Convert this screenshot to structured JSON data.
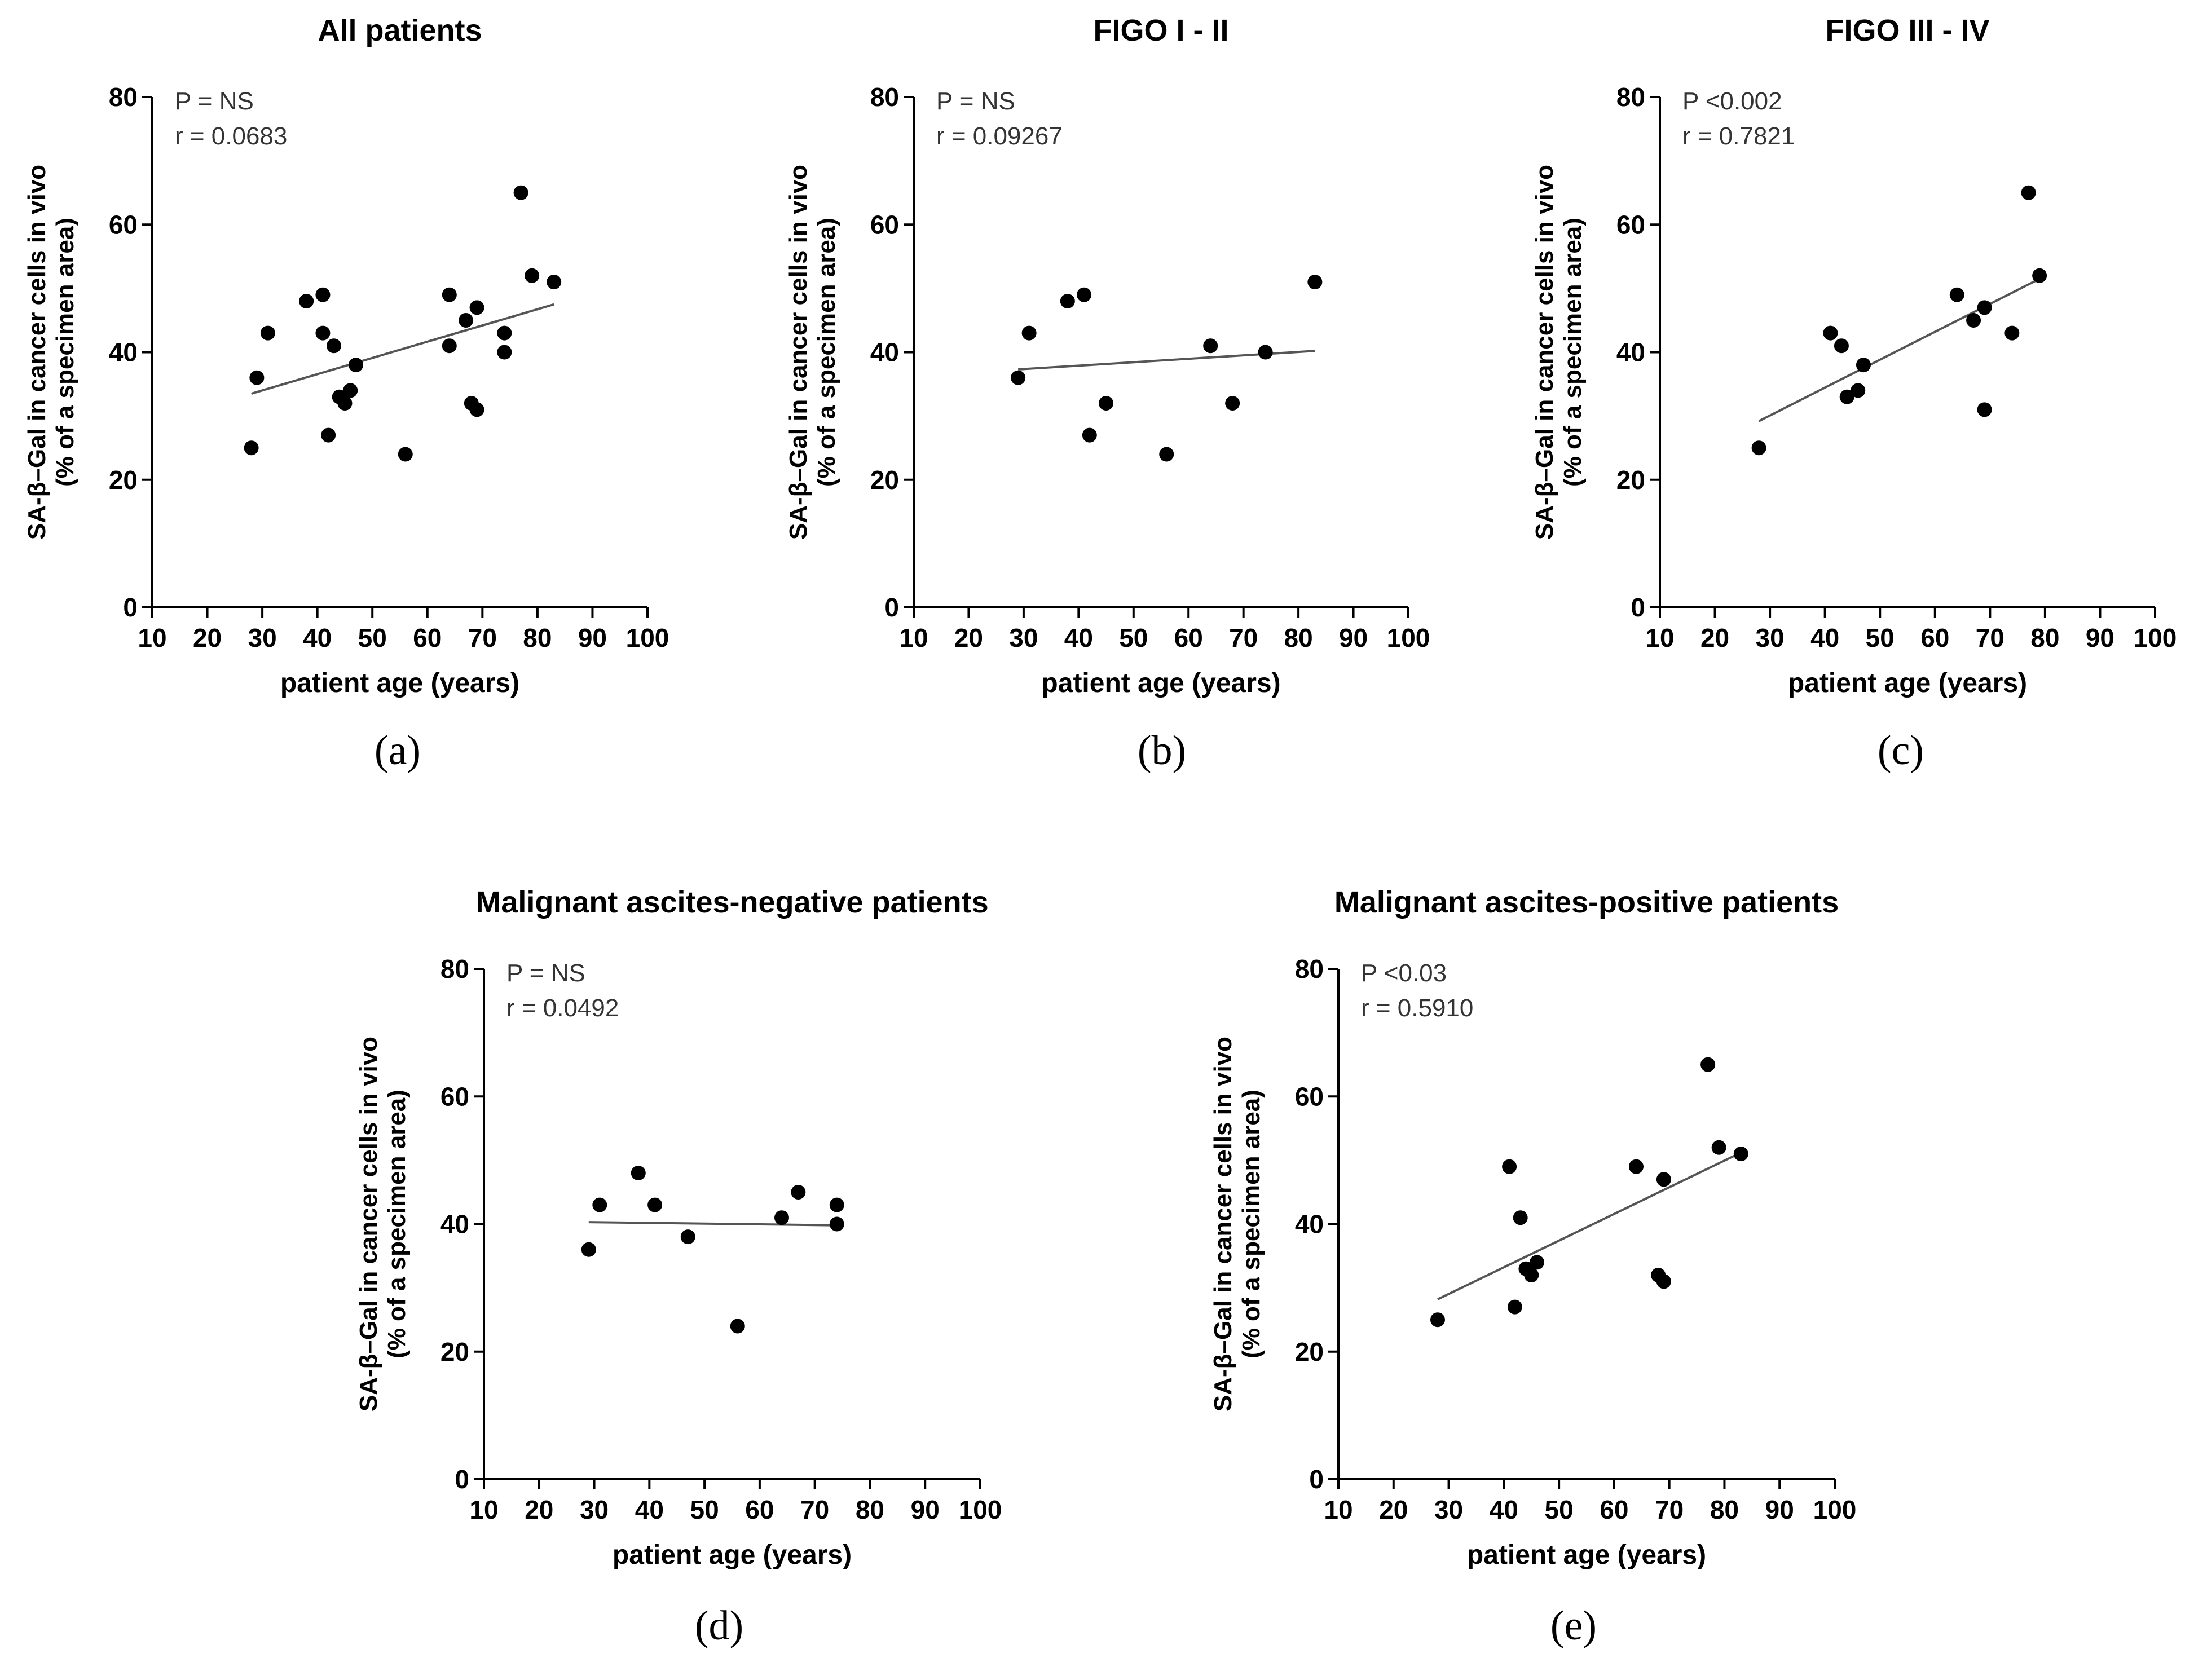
{
  "figure": {
    "panel_labels": [
      "(a)",
      "(b)",
      "(c)",
      "(d)",
      "(e)"
    ]
  },
  "chart_data": [
    {
      "type": "scatter",
      "title": "All patients",
      "xlabel": "patient age (years)",
      "ylabel_line1": "SA-β–Gal in cancer cells in vivo",
      "ylabel_line2": "(% of a specimen area)",
      "xlim": [
        10,
        100
      ],
      "ylim": [
        0,
        80
      ],
      "xticks": [
        10,
        20,
        30,
        40,
        50,
        60,
        70,
        80,
        90,
        100
      ],
      "yticks": [
        0,
        20,
        40,
        60,
        80
      ],
      "stat_p": "P = NS",
      "stat_r": "r = 0.0683",
      "points": [
        {
          "x": 28,
          "y": 25
        },
        {
          "x": 29,
          "y": 36
        },
        {
          "x": 31,
          "y": 43
        },
        {
          "x": 38,
          "y": 48
        },
        {
          "x": 41,
          "y": 49
        },
        {
          "x": 41,
          "y": 43
        },
        {
          "x": 42,
          "y": 27
        },
        {
          "x": 43,
          "y": 41
        },
        {
          "x": 44,
          "y": 33
        },
        {
          "x": 45,
          "y": 32
        },
        {
          "x": 46,
          "y": 34
        },
        {
          "x": 47,
          "y": 38
        },
        {
          "x": 56,
          "y": 24
        },
        {
          "x": 64,
          "y": 49
        },
        {
          "x": 64,
          "y": 41
        },
        {
          "x": 67,
          "y": 45
        },
        {
          "x": 68,
          "y": 32
        },
        {
          "x": 69,
          "y": 31
        },
        {
          "x": 69,
          "y": 47
        },
        {
          "x": 74,
          "y": 43
        },
        {
          "x": 74,
          "y": 40
        },
        {
          "x": 77,
          "y": 65
        },
        {
          "x": 79,
          "y": 52
        },
        {
          "x": 83,
          "y": 51
        }
      ],
      "regression": {
        "x1": 28,
        "y1": 33.5,
        "x2": 83,
        "y2": 47.5
      }
    },
    {
      "type": "scatter",
      "title": "FIGO I - II",
      "xlabel": "patient age (years)",
      "ylabel_line1": "SA-β–Gal in cancer cells in vivo",
      "ylabel_line2": "(% of a specimen area)",
      "xlim": [
        10,
        100
      ],
      "ylim": [
        0,
        80
      ],
      "xticks": [
        10,
        20,
        30,
        40,
        50,
        60,
        70,
        80,
        90,
        100
      ],
      "yticks": [
        0,
        20,
        40,
        60,
        80
      ],
      "stat_p": "P = NS",
      "stat_r": "r = 0.09267",
      "points": [
        {
          "x": 29,
          "y": 36
        },
        {
          "x": 31,
          "y": 43
        },
        {
          "x": 38,
          "y": 48
        },
        {
          "x": 41,
          "y": 49
        },
        {
          "x": 42,
          "y": 27
        },
        {
          "x": 45,
          "y": 32
        },
        {
          "x": 56,
          "y": 24
        },
        {
          "x": 64,
          "y": 41
        },
        {
          "x": 68,
          "y": 32
        },
        {
          "x": 74,
          "y": 40
        },
        {
          "x": 83,
          "y": 51
        }
      ],
      "regression": {
        "x1": 29,
        "y1": 37.3,
        "x2": 83,
        "y2": 40.2
      }
    },
    {
      "type": "scatter",
      "title": "FIGO III - IV",
      "xlabel": "patient age (years)",
      "ylabel_line1": "SA-β–Gal in cancer cells in vivo",
      "ylabel_line2": "(% of a specimen area)",
      "xlim": [
        10,
        100
      ],
      "ylim": [
        0,
        80
      ],
      "xticks": [
        10,
        20,
        30,
        40,
        50,
        60,
        70,
        80,
        90,
        100
      ],
      "yticks": [
        0,
        20,
        40,
        60,
        80
      ],
      "stat_p": "P <0.002",
      "stat_r": "r = 0.7821",
      "points": [
        {
          "x": 28,
          "y": 25
        },
        {
          "x": 41,
          "y": 43
        },
        {
          "x": 43,
          "y": 41
        },
        {
          "x": 44,
          "y": 33
        },
        {
          "x": 46,
          "y": 34
        },
        {
          "x": 47,
          "y": 38
        },
        {
          "x": 64,
          "y": 49
        },
        {
          "x": 67,
          "y": 45
        },
        {
          "x": 69,
          "y": 47
        },
        {
          "x": 69,
          "y": 31
        },
        {
          "x": 74,
          "y": 43
        },
        {
          "x": 77,
          "y": 65
        },
        {
          "x": 79,
          "y": 52
        }
      ],
      "regression": {
        "x1": 28,
        "y1": 29.2,
        "x2": 79,
        "y2": 51.5
      }
    },
    {
      "type": "scatter",
      "title": "Malignant ascites-negative patients",
      "xlabel": "patient age (years)",
      "ylabel_line1": "SA-β–Gal in cancer cells in vivo",
      "ylabel_line2": "(% of a specimen area)",
      "xlim": [
        10,
        100
      ],
      "ylim": [
        0,
        80
      ],
      "xticks": [
        10,
        20,
        30,
        40,
        50,
        60,
        70,
        80,
        90,
        100
      ],
      "yticks": [
        0,
        20,
        40,
        60,
        80
      ],
      "stat_p": "P = NS",
      "stat_r": "r = 0.0492",
      "points": [
        {
          "x": 29,
          "y": 36
        },
        {
          "x": 31,
          "y": 43
        },
        {
          "x": 38,
          "y": 48
        },
        {
          "x": 41,
          "y": 43
        },
        {
          "x": 47,
          "y": 38
        },
        {
          "x": 56,
          "y": 24
        },
        {
          "x": 64,
          "y": 41
        },
        {
          "x": 67,
          "y": 45
        },
        {
          "x": 74,
          "y": 43
        },
        {
          "x": 74,
          "y": 40
        }
      ],
      "regression": {
        "x1": 29,
        "y1": 40.3,
        "x2": 74,
        "y2": 39.8
      }
    },
    {
      "type": "scatter",
      "title": "Malignant ascites-positive patients",
      "xlabel": "patient age (years)",
      "ylabel_line1": "SA-β–Gal in cancer cells in vivo",
      "ylabel_line2": "(% of a specimen area)",
      "xlim": [
        10,
        100
      ],
      "ylim": [
        0,
        80
      ],
      "xticks": [
        10,
        20,
        30,
        40,
        50,
        60,
        70,
        80,
        90,
        100
      ],
      "yticks": [
        0,
        20,
        40,
        60,
        80
      ],
      "stat_p": "P <0.03",
      "stat_r": "r = 0.5910",
      "points": [
        {
          "x": 28,
          "y": 25
        },
        {
          "x": 41,
          "y": 49
        },
        {
          "x": 42,
          "y": 27
        },
        {
          "x": 43,
          "y": 41
        },
        {
          "x": 44,
          "y": 33
        },
        {
          "x": 45,
          "y": 32
        },
        {
          "x": 46,
          "y": 34
        },
        {
          "x": 64,
          "y": 49
        },
        {
          "x": 68,
          "y": 32
        },
        {
          "x": 69,
          "y": 47
        },
        {
          "x": 69,
          "y": 31
        },
        {
          "x": 77,
          "y": 65
        },
        {
          "x": 79,
          "y": 52
        },
        {
          "x": 83,
          "y": 51
        }
      ],
      "regression": {
        "x1": 28,
        "y1": 28.2,
        "x2": 83,
        "y2": 51.2
      }
    }
  ]
}
